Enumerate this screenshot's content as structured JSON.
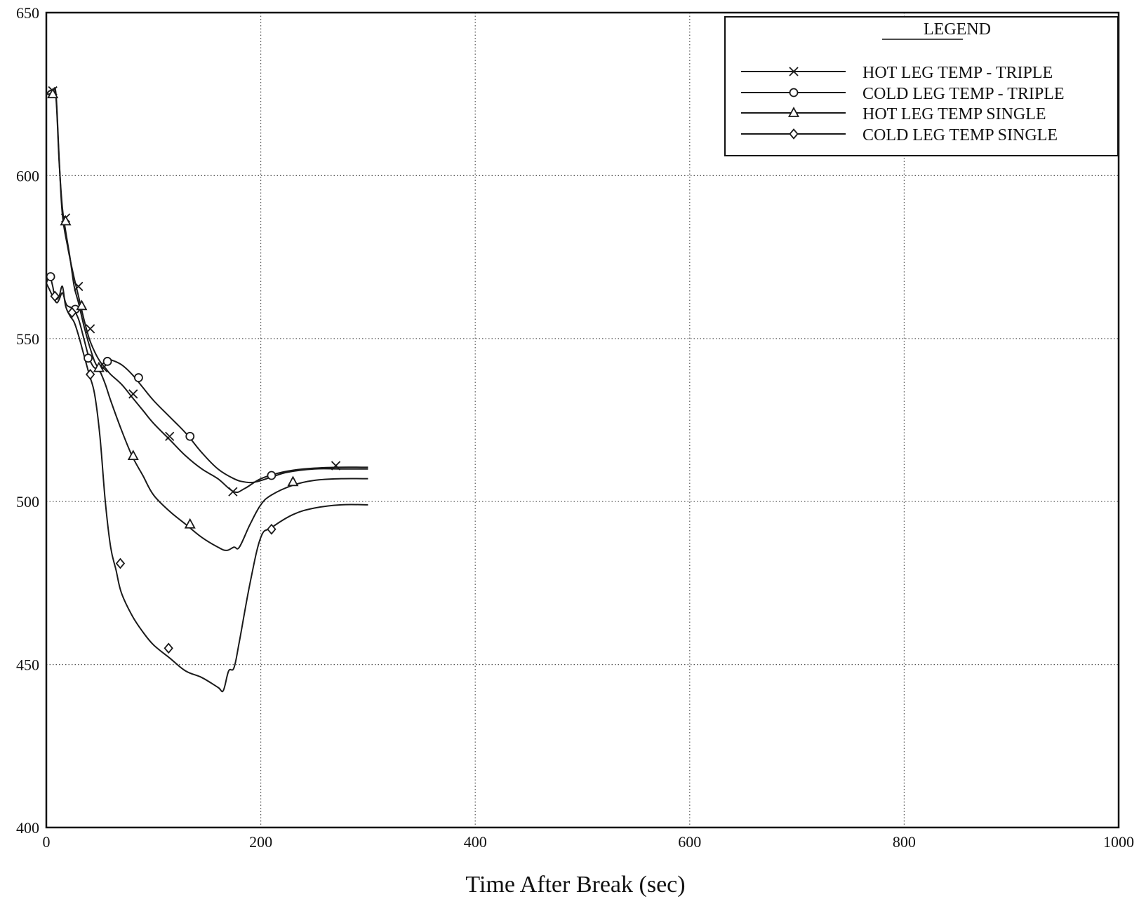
{
  "chart_data": {
    "type": "line",
    "title": "",
    "xlabel": "Time After Break (sec)",
    "ylabel": "",
    "xlim": [
      0,
      1000
    ],
    "ylim": [
      400,
      650
    ],
    "xticks": [
      0,
      200,
      400,
      600,
      800,
      1000
    ],
    "yticks": [
      400,
      450,
      500,
      550,
      600,
      650
    ],
    "xtick_labels": [
      "0",
      "200",
      "400",
      "600",
      "800",
      "1000"
    ],
    "ytick_labels": [
      "400",
      "450",
      "500",
      "550",
      "600",
      "650"
    ],
    "grid": "dotted",
    "legend": {
      "title": "LEGEND",
      "placement": "top-right"
    },
    "line_color": "#1a1a1a",
    "series": [
      {
        "name": "HOT LEG TEMP - TRIPLE",
        "marker": "x",
        "x": [
          0,
          3,
          6,
          9,
          12,
          15,
          20,
          25,
          30,
          35,
          40,
          45,
          50,
          55,
          60,
          70,
          80,
          90,
          100,
          115,
          130,
          145,
          160,
          175,
          185,
          200,
          220,
          240,
          270,
          300
        ],
        "y": [
          625,
          626,
          626,
          625,
          605,
          588,
          578,
          570,
          563,
          556,
          550,
          546,
          543,
          541,
          539,
          536,
          532,
          528,
          524,
          519,
          514,
          510,
          507,
          503,
          504,
          507,
          509,
          510,
          510.5,
          510.5
        ],
        "marker_x": [
          6,
          18,
          30,
          41,
          53,
          81,
          115,
          174,
          270
        ],
        "marker_y": [
          626,
          587,
          566,
          553,
          541,
          533,
          520,
          503,
          511
        ]
      },
      {
        "name": "COLD LEG TEMP - TRIPLE",
        "marker": "o",
        "x": [
          0,
          3,
          6,
          8,
          10,
          12,
          15,
          18,
          20,
          25,
          30,
          35,
          40,
          45,
          50,
          55,
          58,
          60,
          70,
          80,
          90,
          100,
          115,
          130,
          145,
          160,
          175,
          185,
          195,
          210,
          225,
          250,
          275,
          300
        ],
        "y": [
          567,
          569,
          566,
          562,
          561,
          562,
          564,
          561,
          560,
          559,
          556,
          550,
          544,
          541,
          541.5,
          543,
          543.5,
          543.5,
          542,
          539,
          535,
          531,
          526,
          521,
          515,
          510,
          507,
          506,
          506,
          507.5,
          509,
          510,
          510,
          510
        ],
        "marker_x": [
          4,
          27,
          39,
          57,
          86,
          134,
          210
        ],
        "marker_y": [
          569,
          559,
          544,
          543,
          538,
          520,
          508
        ]
      },
      {
        "name": "HOT LEG TEMP SINGLE",
        "marker": "triangle",
        "x": [
          0,
          3,
          6,
          9,
          12,
          15,
          18,
          22,
          26,
          30,
          35,
          40,
          45,
          50,
          55,
          60,
          70,
          80,
          90,
          100,
          115,
          130,
          145,
          160,
          168,
          175,
          180,
          190,
          200,
          210,
          230,
          250,
          275,
          300
        ],
        "y": [
          625,
          625,
          625,
          624,
          604,
          590,
          583,
          575,
          566,
          561,
          554,
          548,
          543,
          540,
          536,
          531,
          522,
          514,
          508,
          502,
          497,
          493,
          489,
          486,
          485,
          486,
          486,
          493,
          499,
          502,
          505,
          506.5,
          507,
          507
        ],
        "marker_x": [
          6,
          18,
          33,
          49,
          81,
          134,
          230
        ],
        "marker_y": [
          625,
          586,
          560,
          541,
          514,
          493,
          506
        ]
      },
      {
        "name": "COLD LEG TEMP SINGLE",
        "marker": "diamond",
        "x": [
          0,
          3,
          6,
          9,
          12,
          15,
          18,
          22,
          26,
          30,
          35,
          40,
          45,
          50,
          55,
          60,
          65,
          70,
          80,
          90,
          100,
          115,
          130,
          145,
          160,
          165,
          170,
          175,
          180,
          190,
          200,
          210,
          230,
          250,
          275,
          300
        ],
        "y": [
          567,
          565,
          563,
          562,
          563,
          566,
          560,
          557,
          555,
          551,
          545,
          539,
          533,
          520,
          500,
          486,
          479,
          472,
          465,
          460,
          456,
          452,
          448,
          446,
          443,
          442,
          448,
          449,
          457,
          475,
          489,
          492,
          496,
          498,
          499,
          499
        ],
        "marker_x": [
          8,
          24,
          41,
          69,
          114,
          210
        ],
        "marker_y": [
          563,
          558,
          539,
          481,
          455,
          491.5
        ]
      }
    ]
  }
}
